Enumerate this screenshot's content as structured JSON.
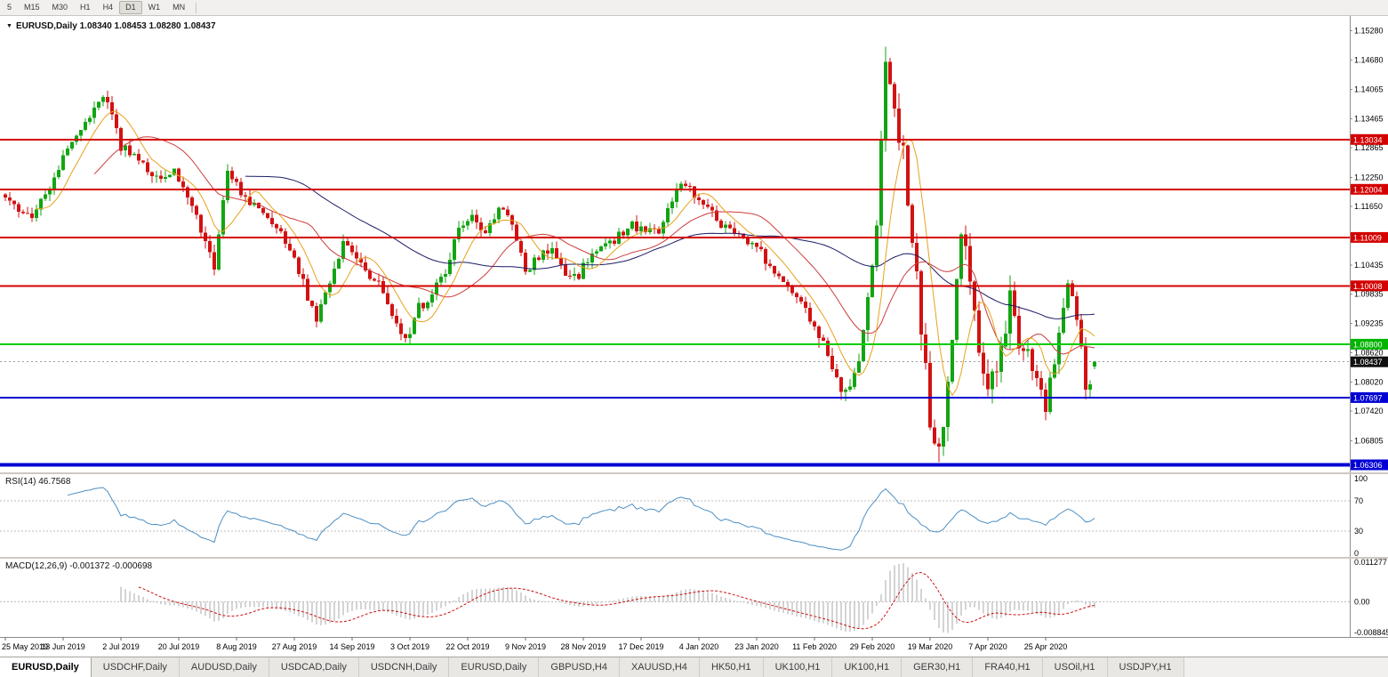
{
  "toolbar": {
    "timeframes": [
      {
        "label": "5",
        "active": false
      },
      {
        "label": "M15",
        "active": false
      },
      {
        "label": "M30",
        "active": false
      },
      {
        "label": "H1",
        "active": false
      },
      {
        "label": "H4",
        "active": false
      },
      {
        "label": "D1",
        "active": true
      },
      {
        "label": "W1",
        "active": false
      },
      {
        "label": "MN",
        "active": false
      }
    ]
  },
  "chart": {
    "title": "EURUSD,Daily 1.08340 1.08453 1.08280 1.08437",
    "symbol": "EURUSD",
    "period": "Daily",
    "open": "1.08340",
    "high": "1.08453",
    "low": "1.08280",
    "close": "1.08437"
  },
  "colors": {
    "candle_up": "#12a512",
    "candle_down": "#d21212",
    "ma_fast": "#e8a11c",
    "ma_mid": "#cc3b3b",
    "ma_slow": "#1c1c66",
    "rsi_line": "#4d8fc4",
    "macd_hist": "#a8a8a8",
    "macd_signal": "#cc1111",
    "level_red": "#d40000",
    "level_green": "#00b400",
    "level_blue": "#0000d4",
    "current_tag": "#101010"
  },
  "price_axis": {
    "labels": [
      "1.15280",
      "1.14680",
      "1.14065",
      "1.13465",
      "1.12865",
      "1.12250",
      "1.11650",
      "1.10435",
      "1.09835",
      "1.09235",
      "1.08620",
      "1.08020",
      "1.07420",
      "1.06805"
    ],
    "tags": [
      {
        "value": "1.13034",
        "price": 1.13034,
        "color": "#d40000",
        "type": "resistance-line"
      },
      {
        "value": "1.12004",
        "price": 1.12004,
        "color": "#d40000",
        "type": "resistance-line"
      },
      {
        "value": "1.11009",
        "price": 1.11009,
        "color": "#d40000",
        "type": "resistance-line"
      },
      {
        "value": "1.10008",
        "price": 1.10008,
        "color": "#d40000",
        "type": "resistance-line"
      },
      {
        "value": "1.08800",
        "price": 1.088,
        "color": "#00b400",
        "type": "support-line"
      },
      {
        "value": "1.08437",
        "price": 1.08437,
        "color": "#101010",
        "type": "current-price"
      },
      {
        "value": "1.07697",
        "price": 1.07697,
        "color": "#0000d4",
        "type": "support-line"
      },
      {
        "value": "1.06306",
        "price": 1.06306,
        "color": "#0000d4",
        "type": "support-line"
      }
    ]
  },
  "hlines": [
    {
      "price": 1.13034,
      "color": "#d40000",
      "width": 2
    },
    {
      "price": 1.12004,
      "color": "#d40000",
      "width": 2
    },
    {
      "price": 1.11009,
      "color": "#d40000",
      "width": 2
    },
    {
      "price": 1.10008,
      "color": "#d40000",
      "width": 2
    },
    {
      "price": 1.088,
      "color": "#00cc00",
      "width": 2
    },
    {
      "price": 1.07697,
      "color": "#0000d4",
      "width": 2
    },
    {
      "price": 1.06306,
      "color": "#0000d4",
      "width": 4
    }
  ],
  "current_price": 1.08437,
  "rsi": {
    "label": "RSI(14) 46.7568",
    "period": 14,
    "value": "46.7568",
    "levels": [
      "100",
      "70",
      "30",
      "0"
    ]
  },
  "macd": {
    "label": "MACD(12,26,9) -0.001372 -0.000698",
    "fast": 12,
    "slow": 26,
    "signal": 9,
    "value": "-0.001372",
    "signal_value": "-0.000698",
    "axis_top": "0.011277",
    "axis_zero": "0.00",
    "axis_bottom": "-0.008845"
  },
  "dates": [
    "25 May 2019",
    "13 Jun 2019",
    "2 Jul 2019",
    "20 Jul 2019",
    "8 Aug 2019",
    "27 Aug 2019",
    "14 Sep 2019",
    "3 Oct 2019",
    "22 Oct 2019",
    "9 Nov 2019",
    "28 Nov 2019",
    "17 Dec 2019",
    "4 Jan 2020",
    "23 Jan 2020",
    "11 Feb 2020",
    "29 Feb 2020",
    "19 Mar 2020",
    "7 Apr 2020",
    "25 Apr 2020"
  ],
  "tabs": [
    {
      "label": "EURUSD,Daily",
      "active": true
    },
    {
      "label": "USDCHF,Daily",
      "active": false
    },
    {
      "label": "AUDUSD,Daily",
      "active": false
    },
    {
      "label": "USDCAD,Daily",
      "active": false
    },
    {
      "label": "USDCNH,Daily",
      "active": false
    },
    {
      "label": "EURUSD,Daily",
      "active": false
    },
    {
      "label": "GBPUSD,H4",
      "active": false
    },
    {
      "label": "XAUUSD,H4",
      "active": false
    },
    {
      "label": "HK50,H1",
      "active": false
    },
    {
      "label": "UK100,H1",
      "active": false
    },
    {
      "label": "UK100,H1",
      "active": false
    },
    {
      "label": "GER30,H1",
      "active": false
    },
    {
      "label": "FRA40,H1",
      "active": false
    },
    {
      "label": "USOil,H1",
      "active": false
    },
    {
      "label": "USDJPY,H1",
      "active": false
    }
  ],
  "chart_data": {
    "type": "candlestick",
    "symbol": "EURUSD",
    "timeframe": "Daily",
    "count": 246,
    "x_axis_dates": [
      "25 May 2019",
      "13 Jun 2019",
      "2 Jul 2019",
      "20 Jul 2019",
      "8 Aug 2019",
      "27 Aug 2019",
      "14 Sep 2019",
      "3 Oct 2019",
      "22 Oct 2019",
      "9 Nov 2019",
      "28 Nov 2019",
      "17 Dec 2019",
      "4 Jan 2020",
      "23 Jan 2020",
      "11 Feb 2020",
      "29 Feb 2020",
      "19 Mar 2020",
      "7 Apr 2020",
      "25 Apr 2020"
    ],
    "y_domain": [
      1.0615,
      1.1555
    ],
    "visible_extremes": {
      "high": 1.1495,
      "high_near": "9 Mar 2020",
      "low": 1.0636,
      "low_near": "19-23 Mar 2020"
    },
    "last_candle": {
      "open": 1.0834,
      "high": 1.08453,
      "low": 1.0828,
      "close": 1.08437
    },
    "price_path_anchors": [
      [
        0,
        1.119
      ],
      [
        3,
        1.116
      ],
      [
        6,
        1.115
      ],
      [
        9,
        1.1185
      ],
      [
        13,
        1.127
      ],
      [
        17,
        1.133
      ],
      [
        20,
        1.137
      ],
      [
        22,
        1.1395
      ],
      [
        24,
        1.136
      ],
      [
        26,
        1.129
      ],
      [
        29,
        1.1275
      ],
      [
        32,
        1.124
      ],
      [
        35,
        1.1225
      ],
      [
        38,
        1.1245
      ],
      [
        41,
        1.118
      ],
      [
        44,
        1.112
      ],
      [
        47,
        1.1035
      ],
      [
        50,
        1.124
      ],
      [
        53,
        1.1195
      ],
      [
        56,
        1.117
      ],
      [
        59,
        1.1145
      ],
      [
        62,
        1.1105
      ],
      [
        65,
        1.106
      ],
      [
        68,
        1.098
      ],
      [
        70,
        1.0935
      ],
      [
        73,
        1.101
      ],
      [
        76,
        1.1095
      ],
      [
        79,
        1.106
      ],
      [
        82,
        1.101
      ],
      [
        85,
        1.0995
      ],
      [
        88,
        1.0925
      ],
      [
        90,
        1.0885
      ],
      [
        93,
        1.0955
      ],
      [
        96,
        1.0985
      ],
      [
        99,
        1.1035
      ],
      [
        102,
        1.1125
      ],
      [
        105,
        1.1145
      ],
      [
        108,
        1.111
      ],
      [
        111,
        1.1155
      ],
      [
        114,
        1.1135
      ],
      [
        117,
        1.1035
      ],
      [
        120,
        1.106
      ],
      [
        123,
        1.1075
      ],
      [
        126,
        1.1015
      ],
      [
        129,
        1.1025
      ],
      [
        132,
        1.1075
      ],
      [
        135,
        1.108
      ],
      [
        138,
        1.1105
      ],
      [
        141,
        1.1125
      ],
      [
        144,
        1.1115
      ],
      [
        147,
        1.111
      ],
      [
        150,
        1.1175
      ],
      [
        152,
        1.1215
      ],
      [
        155,
        1.119
      ],
      [
        158,
        1.116
      ],
      [
        161,
        1.1125
      ],
      [
        164,
        1.1105
      ],
      [
        167,
        1.1095
      ],
      [
        170,
        1.1075
      ],
      [
        173,
        1.102
      ],
      [
        176,
        1.1
      ],
      [
        179,
        1.0975
      ],
      [
        182,
        1.091
      ],
      [
        185,
        1.0865
      ],
      [
        188,
        1.0795
      ],
      [
        190,
        1.0805
      ],
      [
        192,
        1.0855
      ],
      [
        194,
        1.0985
      ],
      [
        196,
        1.1135
      ],
      [
        198,
        1.144
      ],
      [
        200,
        1.135
      ],
      [
        202,
        1.127
      ],
      [
        204,
        1.11
      ],
      [
        206,
        1.0915
      ],
      [
        208,
        1.073
      ],
      [
        210,
        1.0665
      ],
      [
        212,
        1.08
      ],
      [
        214,
        1.1
      ],
      [
        215,
        1.113
      ],
      [
        217,
        1.1
      ],
      [
        219,
        1.0885
      ],
      [
        221,
        1.079
      ],
      [
        223,
        1.0815
      ],
      [
        225,
        1.0925
      ],
      [
        226,
        1.0975
      ],
      [
        228,
        1.0885
      ],
      [
        230,
        1.086
      ],
      [
        232,
        1.0815
      ],
      [
        234,
        1.0745
      ],
      [
        236,
        1.085
      ],
      [
        238,
        1.097
      ],
      [
        239,
        1.1005
      ],
      [
        240,
        1.0985
      ],
      [
        241,
        1.093
      ],
      [
        242,
        1.087
      ],
      [
        243,
        1.079
      ],
      [
        244,
        1.0805
      ],
      [
        245,
        1.08437
      ]
    ],
    "overlays": [
      {
        "name": "sma-fast",
        "period": 8,
        "color": "#e8a11c"
      },
      {
        "name": "sma-mid",
        "period": 21,
        "color": "#cc3b3b"
      },
      {
        "name": "sma-slow",
        "period": 55,
        "color": "#1c1c66"
      }
    ],
    "indicators": [
      {
        "name": "RSI",
        "period": 14,
        "last": 46.7568,
        "range": [
          0,
          100
        ],
        "marked_levels": [
          70,
          30
        ]
      },
      {
        "name": "MACD",
        "fast": 12,
        "slow": 26,
        "signal": 9,
        "last": -0.001372,
        "last_signal": -0.000698,
        "axis": [
          0.011277,
          0.0,
          -0.008845
        ]
      }
    ],
    "horizontal_levels": [
      1.13034,
      1.12004,
      1.11009,
      1.10008,
      1.088,
      1.07697,
      1.06306
    ]
  }
}
